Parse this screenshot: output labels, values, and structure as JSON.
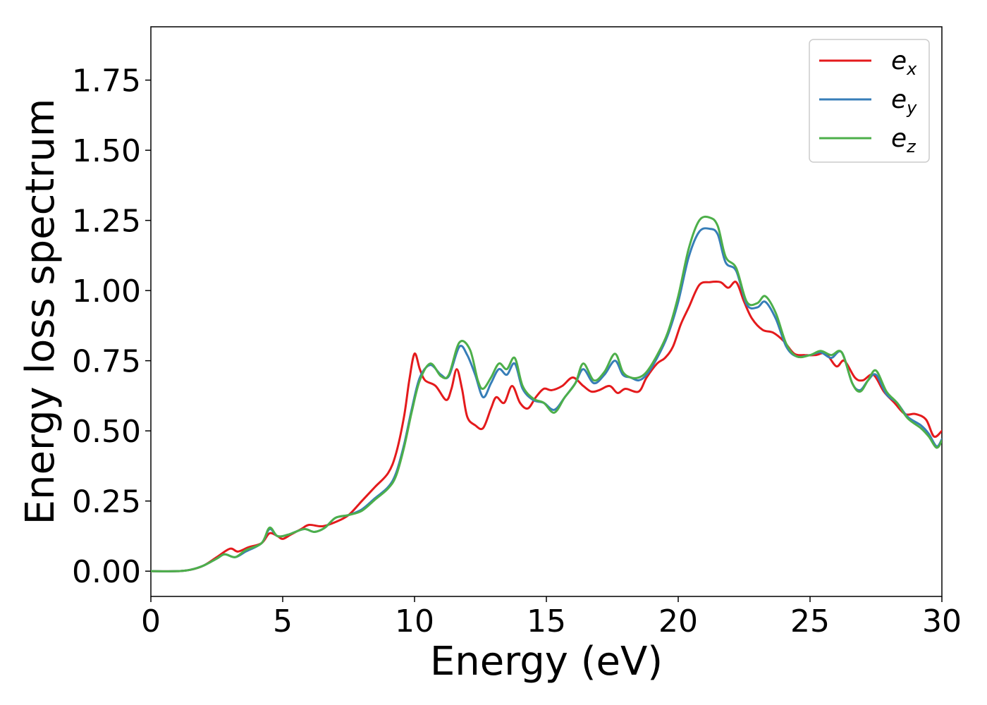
{
  "chart_data": {
    "type": "line",
    "title": "",
    "xlabel": "Energy (eV)",
    "ylabel": "Energy loss spectrum",
    "xlim": [
      0,
      30
    ],
    "ylim": [
      -0.09,
      1.94
    ],
    "x_ticks": [
      0,
      5,
      10,
      15,
      20,
      25,
      30
    ],
    "x_tick_labels": [
      "0",
      "5",
      "10",
      "15",
      "20",
      "25",
      "30"
    ],
    "y_ticks": [
      0.0,
      0.25,
      0.5,
      0.75,
      1.0,
      1.25,
      1.5,
      1.75
    ],
    "y_tick_labels": [
      "0.00",
      "0.25",
      "0.50",
      "0.75",
      "1.00",
      "1.25",
      "1.50",
      "1.75"
    ],
    "grid": false,
    "legend_position": "top-right",
    "series": [
      {
        "name": "e",
        "subscript": "x",
        "color": "#e41a1c",
        "points": [
          [
            0,
            0.0
          ],
          [
            1,
            0.0
          ],
          [
            1.5,
            0.005
          ],
          [
            2,
            0.02
          ],
          [
            2.5,
            0.05
          ],
          [
            3,
            0.08
          ],
          [
            3.3,
            0.07
          ],
          [
            3.7,
            0.085
          ],
          [
            4.2,
            0.1
          ],
          [
            4.5,
            0.135
          ],
          [
            4.8,
            0.125
          ],
          [
            5,
            0.115
          ],
          [
            5.3,
            0.13
          ],
          [
            5.7,
            0.15
          ],
          [
            6,
            0.165
          ],
          [
            6.5,
            0.16
          ],
          [
            7,
            0.175
          ],
          [
            7.5,
            0.2
          ],
          [
            8,
            0.25
          ],
          [
            8.5,
            0.3
          ],
          [
            9,
            0.35
          ],
          [
            9.3,
            0.42
          ],
          [
            9.6,
            0.55
          ],
          [
            9.8,
            0.68
          ],
          [
            10,
            0.775
          ],
          [
            10.2,
            0.72
          ],
          [
            10.4,
            0.68
          ],
          [
            10.8,
            0.66
          ],
          [
            11.2,
            0.61
          ],
          [
            11.4,
            0.65
          ],
          [
            11.6,
            0.72
          ],
          [
            11.8,
            0.65
          ],
          [
            12,
            0.55
          ],
          [
            12.3,
            0.52
          ],
          [
            12.6,
            0.51
          ],
          [
            12.9,
            0.58
          ],
          [
            13.1,
            0.62
          ],
          [
            13.4,
            0.6
          ],
          [
            13.7,
            0.66
          ],
          [
            14,
            0.6
          ],
          [
            14.3,
            0.58
          ],
          [
            14.6,
            0.62
          ],
          [
            14.9,
            0.65
          ],
          [
            15.2,
            0.645
          ],
          [
            15.6,
            0.66
          ],
          [
            16,
            0.69
          ],
          [
            16.4,
            0.66
          ],
          [
            16.7,
            0.64
          ],
          [
            17,
            0.645
          ],
          [
            17.4,
            0.66
          ],
          [
            17.7,
            0.635
          ],
          [
            18,
            0.65
          ],
          [
            18.5,
            0.64
          ],
          [
            18.8,
            0.69
          ],
          [
            19.2,
            0.74
          ],
          [
            19.5,
            0.76
          ],
          [
            19.8,
            0.8
          ],
          [
            20.1,
            0.88
          ],
          [
            20.4,
            0.94
          ],
          [
            20.8,
            1.02
          ],
          [
            21.2,
            1.03
          ],
          [
            21.6,
            1.03
          ],
          [
            21.9,
            1.01
          ],
          [
            22.2,
            1.03
          ],
          [
            22.5,
            0.96
          ],
          [
            22.8,
            0.9
          ],
          [
            23.2,
            0.86
          ],
          [
            23.6,
            0.85
          ],
          [
            24,
            0.82
          ],
          [
            24.4,
            0.775
          ],
          [
            24.8,
            0.77
          ],
          [
            25.2,
            0.77
          ],
          [
            25.6,
            0.775
          ],
          [
            26,
            0.73
          ],
          [
            26.3,
            0.75
          ],
          [
            26.7,
            0.69
          ],
          [
            27,
            0.68
          ],
          [
            27.4,
            0.7
          ],
          [
            27.8,
            0.64
          ],
          [
            28.2,
            0.6
          ],
          [
            28.6,
            0.56
          ],
          [
            29,
            0.56
          ],
          [
            29.4,
            0.54
          ],
          [
            29.7,
            0.48
          ],
          [
            30,
            0.5
          ]
        ]
      },
      {
        "name": "e",
        "subscript": "y",
        "color": "#377eb8",
        "points": [
          [
            0,
            0.0
          ],
          [
            1,
            0.0
          ],
          [
            1.5,
            0.005
          ],
          [
            2,
            0.02
          ],
          [
            2.5,
            0.045
          ],
          [
            2.8,
            0.06
          ],
          [
            3.2,
            0.05
          ],
          [
            3.6,
            0.07
          ],
          [
            4.2,
            0.1
          ],
          [
            4.5,
            0.15
          ],
          [
            4.8,
            0.125
          ],
          [
            5.2,
            0.13
          ],
          [
            5.8,
            0.15
          ],
          [
            6.2,
            0.14
          ],
          [
            6.6,
            0.155
          ],
          [
            7,
            0.19
          ],
          [
            7.5,
            0.2
          ],
          [
            8,
            0.22
          ],
          [
            8.5,
            0.26
          ],
          [
            9,
            0.3
          ],
          [
            9.3,
            0.35
          ],
          [
            9.6,
            0.45
          ],
          [
            9.9,
            0.58
          ],
          [
            10.2,
            0.69
          ],
          [
            10.6,
            0.735
          ],
          [
            11,
            0.7
          ],
          [
            11.3,
            0.695
          ],
          [
            11.7,
            0.8
          ],
          [
            12,
            0.77
          ],
          [
            12.3,
            0.7
          ],
          [
            12.6,
            0.62
          ],
          [
            12.9,
            0.67
          ],
          [
            13.2,
            0.72
          ],
          [
            13.5,
            0.7
          ],
          [
            13.8,
            0.74
          ],
          [
            14.1,
            0.65
          ],
          [
            14.5,
            0.61
          ],
          [
            14.9,
            0.6
          ],
          [
            15.3,
            0.575
          ],
          [
            15.7,
            0.62
          ],
          [
            16.1,
            0.67
          ],
          [
            16.4,
            0.72
          ],
          [
            16.8,
            0.67
          ],
          [
            17.2,
            0.7
          ],
          [
            17.6,
            0.75
          ],
          [
            17.9,
            0.7
          ],
          [
            18.2,
            0.69
          ],
          [
            18.5,
            0.68
          ],
          [
            18.8,
            0.7
          ],
          [
            19.2,
            0.76
          ],
          [
            19.6,
            0.84
          ],
          [
            20,
            0.96
          ],
          [
            20.4,
            1.12
          ],
          [
            20.8,
            1.21
          ],
          [
            21.2,
            1.22
          ],
          [
            21.5,
            1.2
          ],
          [
            21.8,
            1.1
          ],
          [
            22.2,
            1.07
          ],
          [
            22.6,
            0.95
          ],
          [
            23,
            0.94
          ],
          [
            23.3,
            0.96
          ],
          [
            23.7,
            0.9
          ],
          [
            24.1,
            0.8
          ],
          [
            24.5,
            0.765
          ],
          [
            25,
            0.77
          ],
          [
            25.4,
            0.78
          ],
          [
            25.8,
            0.76
          ],
          [
            26.2,
            0.78
          ],
          [
            26.6,
            0.67
          ],
          [
            26.9,
            0.645
          ],
          [
            27.2,
            0.68
          ],
          [
            27.5,
            0.7
          ],
          [
            27.9,
            0.63
          ],
          [
            28.3,
            0.6
          ],
          [
            28.7,
            0.55
          ],
          [
            29.2,
            0.52
          ],
          [
            29.5,
            0.49
          ],
          [
            29.8,
            0.445
          ],
          [
            30,
            0.47
          ]
        ]
      },
      {
        "name": "e",
        "subscript": "z",
        "color": "#4daf4a",
        "points": [
          [
            0,
            0.0
          ],
          [
            1,
            0.0
          ],
          [
            1.5,
            0.005
          ],
          [
            2,
            0.02
          ],
          [
            2.5,
            0.045
          ],
          [
            2.8,
            0.06
          ],
          [
            3.2,
            0.05
          ],
          [
            3.6,
            0.075
          ],
          [
            4.2,
            0.1
          ],
          [
            4.5,
            0.155
          ],
          [
            4.8,
            0.125
          ],
          [
            5.2,
            0.13
          ],
          [
            5.8,
            0.15
          ],
          [
            6.2,
            0.14
          ],
          [
            6.6,
            0.155
          ],
          [
            7,
            0.19
          ],
          [
            7.5,
            0.2
          ],
          [
            8,
            0.215
          ],
          [
            8.5,
            0.255
          ],
          [
            9,
            0.295
          ],
          [
            9.3,
            0.34
          ],
          [
            9.6,
            0.44
          ],
          [
            9.9,
            0.57
          ],
          [
            10.2,
            0.68
          ],
          [
            10.6,
            0.74
          ],
          [
            11,
            0.695
          ],
          [
            11.3,
            0.7
          ],
          [
            11.7,
            0.815
          ],
          [
            12.1,
            0.79
          ],
          [
            12.4,
            0.68
          ],
          [
            12.6,
            0.65
          ],
          [
            12.9,
            0.69
          ],
          [
            13.2,
            0.74
          ],
          [
            13.5,
            0.72
          ],
          [
            13.8,
            0.76
          ],
          [
            14.1,
            0.66
          ],
          [
            14.5,
            0.615
          ],
          [
            14.9,
            0.6
          ],
          [
            15.3,
            0.565
          ],
          [
            15.7,
            0.62
          ],
          [
            16.1,
            0.67
          ],
          [
            16.4,
            0.74
          ],
          [
            16.8,
            0.68
          ],
          [
            17.2,
            0.71
          ],
          [
            17.6,
            0.775
          ],
          [
            17.9,
            0.71
          ],
          [
            18.2,
            0.69
          ],
          [
            18.5,
            0.69
          ],
          [
            18.8,
            0.71
          ],
          [
            19.2,
            0.77
          ],
          [
            19.6,
            0.85
          ],
          [
            20,
            0.98
          ],
          [
            20.4,
            1.15
          ],
          [
            20.8,
            1.25
          ],
          [
            21.2,
            1.26
          ],
          [
            21.5,
            1.23
          ],
          [
            21.8,
            1.12
          ],
          [
            22.2,
            1.08
          ],
          [
            22.6,
            0.96
          ],
          [
            23,
            0.955
          ],
          [
            23.3,
            0.98
          ],
          [
            23.7,
            0.92
          ],
          [
            24.1,
            0.81
          ],
          [
            24.5,
            0.765
          ],
          [
            25,
            0.77
          ],
          [
            25.4,
            0.785
          ],
          [
            25.8,
            0.77
          ],
          [
            26.2,
            0.78
          ],
          [
            26.6,
            0.67
          ],
          [
            26.9,
            0.64
          ],
          [
            27.2,
            0.68
          ],
          [
            27.5,
            0.715
          ],
          [
            27.9,
            0.64
          ],
          [
            28.3,
            0.6
          ],
          [
            28.7,
            0.545
          ],
          [
            29.2,
            0.51
          ],
          [
            29.5,
            0.48
          ],
          [
            29.8,
            0.44
          ],
          [
            30,
            0.465
          ]
        ]
      }
    ]
  }
}
